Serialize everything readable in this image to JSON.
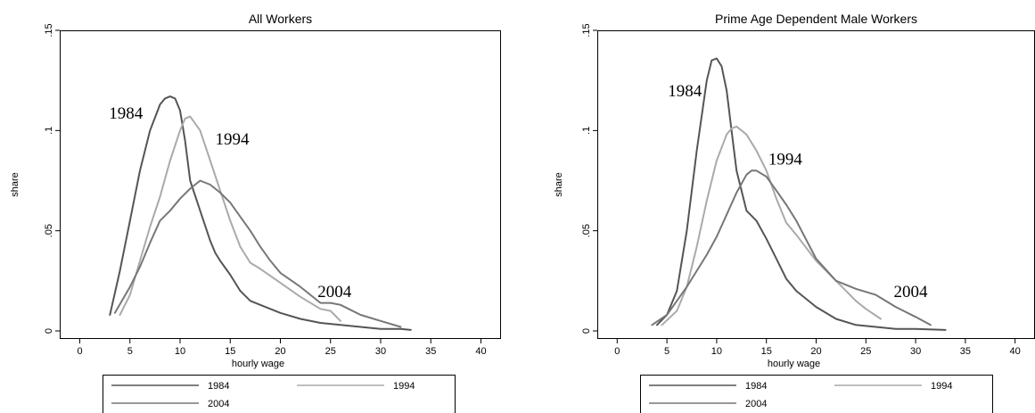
{
  "chart_data": [
    {
      "type": "line",
      "title": "All Workers",
      "xlabel": "hourly wage",
      "ylabel": "share",
      "xlim": [
        -2,
        42
      ],
      "ylim": [
        -0.004,
        0.15
      ],
      "xticks": [
        0,
        5,
        10,
        15,
        20,
        25,
        30,
        35,
        40
      ],
      "xtick_labels": [
        "0",
        "5",
        "10",
        "15",
        "20",
        "25",
        "30",
        "35",
        "40"
      ],
      "yticks": [
        0,
        0.05,
        0.1,
        0.15
      ],
      "ytick_labels": [
        "0",
        ".05",
        ".1",
        ".15"
      ],
      "grid": false,
      "legend_position": "bottom",
      "series": [
        {
          "name": "1984",
          "color": "#555555",
          "x": [
            3,
            4,
            5,
            6,
            7,
            8,
            8.5,
            9,
            9.5,
            10,
            10.5,
            11,
            12,
            13,
            13.5,
            14,
            15,
            16,
            17,
            18,
            20,
            22,
            24,
            26,
            28,
            30,
            32,
            33
          ],
          "y": [
            0.008,
            0.03,
            0.055,
            0.08,
            0.1,
            0.113,
            0.116,
            0.117,
            0.116,
            0.11,
            0.095,
            0.075,
            0.06,
            0.045,
            0.039,
            0.035,
            0.028,
            0.02,
            0.015,
            0.013,
            0.009,
            0.006,
            0.004,
            0.003,
            0.002,
            0.001,
            0.001,
            0.0005
          ]
        },
        {
          "name": "1994",
          "color": "#aaaaaa",
          "x": [
            4,
            5,
            6,
            7,
            8,
            9,
            10,
            10.5,
            11,
            12,
            13,
            14,
            15,
            16,
            17,
            18,
            20,
            22,
            24,
            25,
            26
          ],
          "y": [
            0.008,
            0.018,
            0.035,
            0.052,
            0.067,
            0.085,
            0.1,
            0.106,
            0.107,
            0.1,
            0.085,
            0.07,
            0.055,
            0.042,
            0.034,
            0.031,
            0.024,
            0.017,
            0.011,
            0.01,
            0.005
          ]
        },
        {
          "name": "2004",
          "color": "#777777",
          "x": [
            3.5,
            5,
            6,
            7,
            8,
            9,
            10,
            11,
            12,
            13,
            14,
            15,
            16,
            17,
            18,
            19,
            20,
            22,
            24,
            25,
            26,
            28,
            30,
            32
          ],
          "y": [
            0.009,
            0.022,
            0.032,
            0.044,
            0.055,
            0.06,
            0.066,
            0.071,
            0.075,
            0.073,
            0.069,
            0.064,
            0.057,
            0.05,
            0.042,
            0.035,
            0.029,
            0.022,
            0.014,
            0.014,
            0.013,
            0.008,
            0.005,
            0.002
          ]
        }
      ],
      "annotations": [
        {
          "text": "1984",
          "x": 4.6,
          "y": 0.106
        },
        {
          "text": "1994",
          "x": 15.2,
          "y": 0.093
        },
        {
          "text": "2004",
          "x": 25.4,
          "y": 0.017
        }
      ]
    },
    {
      "type": "line",
      "title": "Prime Age Dependent Male Workers",
      "xlabel": "hourly wage",
      "ylabel": "share",
      "xlim": [
        -2,
        42
      ],
      "ylim": [
        -0.004,
        0.15
      ],
      "xticks": [
        0,
        5,
        10,
        15,
        20,
        25,
        30,
        35,
        40
      ],
      "xtick_labels": [
        "0",
        "5",
        "10",
        "15",
        "20",
        "25",
        "30",
        "35",
        "40"
      ],
      "yticks": [
        0,
        0.05,
        0.1,
        0.15
      ],
      "ytick_labels": [
        "0",
        ".05",
        ".1",
        ".15"
      ],
      "grid": false,
      "legend_position": "bottom",
      "series": [
        {
          "name": "1984",
          "color": "#555555",
          "x": [
            4,
            5,
            6,
            7,
            8,
            9,
            9.5,
            10,
            10.5,
            11,
            11.5,
            12,
            13,
            14,
            15,
            16,
            17,
            18,
            20,
            22,
            24,
            26,
            28,
            30,
            33
          ],
          "y": [
            0.003,
            0.008,
            0.02,
            0.05,
            0.09,
            0.125,
            0.135,
            0.136,
            0.132,
            0.12,
            0.1,
            0.08,
            0.06,
            0.055,
            0.046,
            0.036,
            0.026,
            0.02,
            0.012,
            0.006,
            0.003,
            0.002,
            0.001,
            0.001,
            0.0005
          ]
        },
        {
          "name": "1994",
          "color": "#aaaaaa",
          "x": [
            4.5,
            6,
            7,
            8,
            9,
            10,
            11,
            11.5,
            12,
            13,
            14,
            15,
            16,
            17,
            18,
            20,
            22,
            24,
            25,
            26.5
          ],
          "y": [
            0.003,
            0.01,
            0.022,
            0.042,
            0.065,
            0.085,
            0.098,
            0.101,
            0.102,
            0.098,
            0.09,
            0.08,
            0.066,
            0.054,
            0.048,
            0.035,
            0.025,
            0.015,
            0.011,
            0.006
          ]
        },
        {
          "name": "2004",
          "color": "#777777",
          "x": [
            3.5,
            5,
            6,
            7,
            8,
            9,
            10,
            11,
            12,
            13,
            13.5,
            14,
            15,
            16,
            17,
            18,
            20,
            22,
            24,
            26,
            28,
            30,
            31.5
          ],
          "y": [
            0.003,
            0.008,
            0.015,
            0.022,
            0.03,
            0.038,
            0.047,
            0.058,
            0.069,
            0.078,
            0.08,
            0.08,
            0.077,
            0.07,
            0.063,
            0.055,
            0.036,
            0.025,
            0.021,
            0.018,
            0.012,
            0.007,
            0.003
          ]
        }
      ],
      "annotations": [
        {
          "text": "1984",
          "x": 6.8,
          "y": 0.117
        },
        {
          "text": "1994",
          "x": 16.9,
          "y": 0.083
        },
        {
          "text": "2004",
          "x": 29.5,
          "y": 0.017
        }
      ]
    }
  ]
}
